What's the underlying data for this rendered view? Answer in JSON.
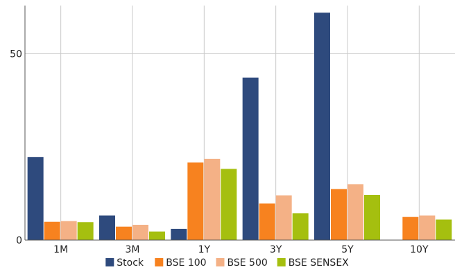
{
  "chart_data": {
    "type": "bar",
    "categories": [
      "1M",
      "3M",
      "1Y",
      "3Y",
      "5Y",
      "10Y"
    ],
    "series": [
      {
        "name": "Stock",
        "color": "#2e4a7d",
        "values": [
          22.3,
          6.6,
          3.0,
          43.6,
          61.0,
          null
        ]
      },
      {
        "name": "BSE 100",
        "color": "#f7821f",
        "values": [
          4.9,
          3.6,
          20.8,
          9.8,
          13.7,
          6.2
        ]
      },
      {
        "name": "BSE 500",
        "color": "#f4b186",
        "values": [
          5.1,
          4.1,
          21.8,
          12.0,
          15.0,
          6.6
        ]
      },
      {
        "name": "BSE SENSEX",
        "color": "#a5bf0f",
        "values": [
          4.8,
          2.3,
          19.1,
          7.2,
          12.1,
          5.5
        ]
      }
    ],
    "ylim": [
      0,
      61.8
    ],
    "yticks": [
      0,
      50
    ],
    "grid": true,
    "legend_position": "bottom"
  }
}
